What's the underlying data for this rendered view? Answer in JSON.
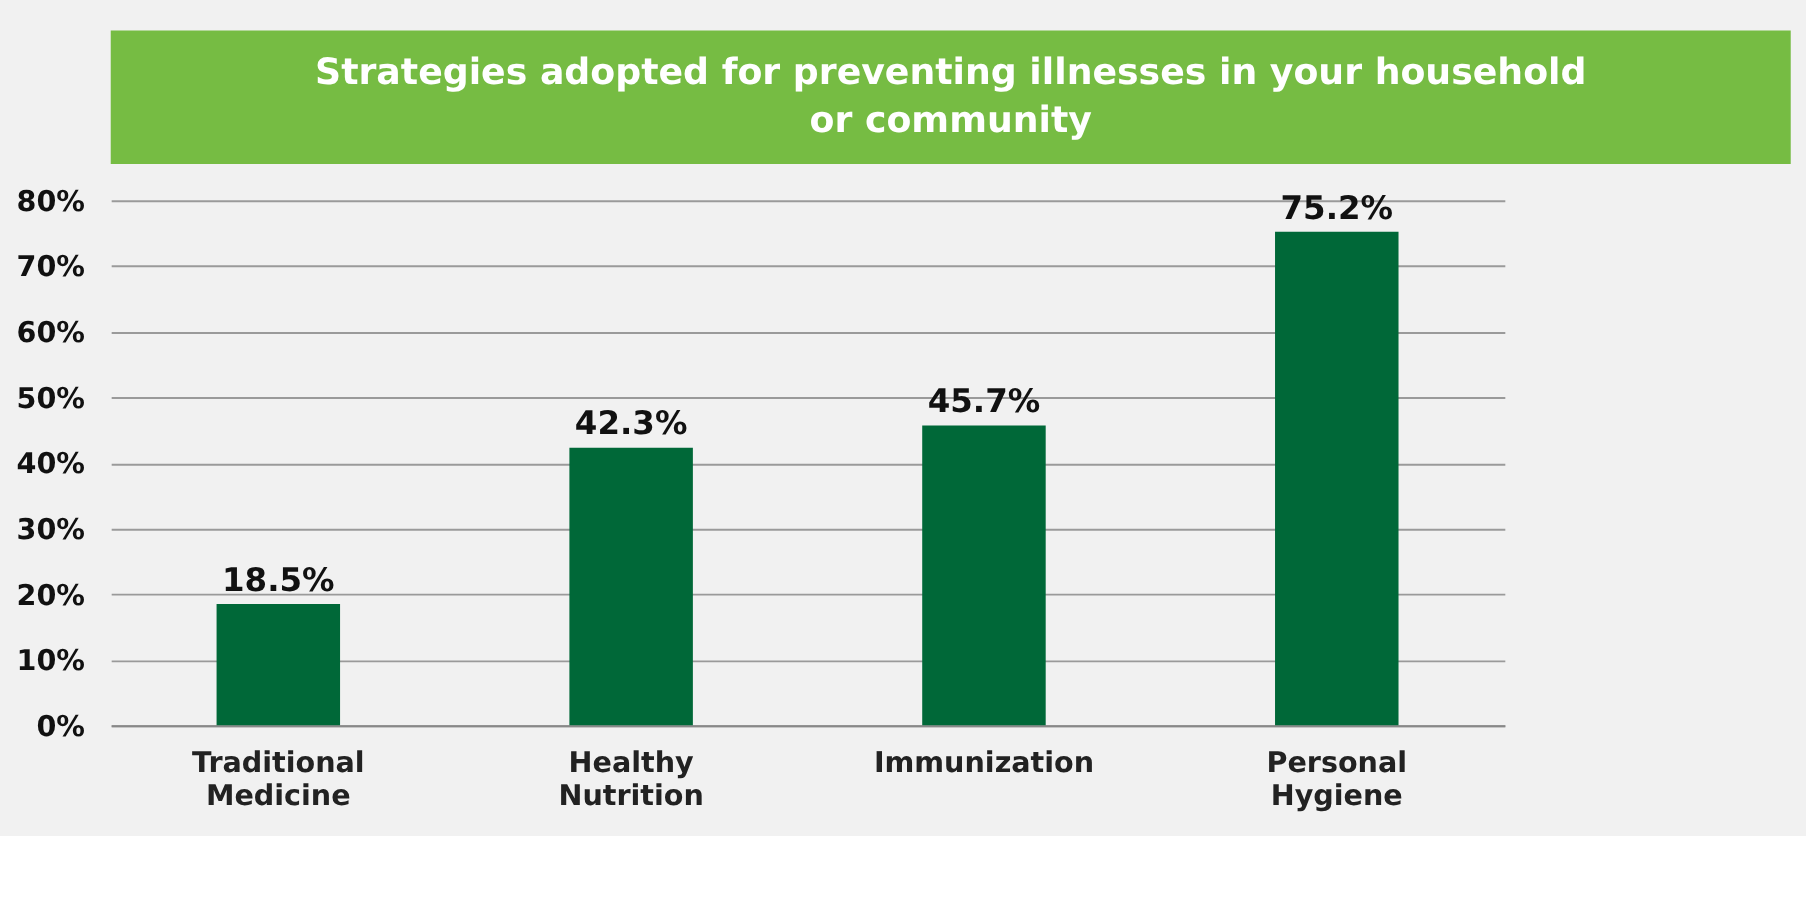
{
  "chart_data": {
    "type": "bar",
    "title": "Strategies adopted for preventing illnesses in your household or community",
    "categories": [
      "Traditional Medicine",
      "Healthy Nutrition",
      "Immunization",
      "Personal Hygiene"
    ],
    "values": [
      18.5,
      42.3,
      45.7,
      75.2
    ],
    "value_labels": [
      "18.5%",
      "42.3%",
      "45.7%",
      "75.2%"
    ],
    "color": "#006838",
    "ylim": [
      0,
      80
    ],
    "yticks": [
      {
        "value": 0,
        "label": "0%"
      },
      {
        "value": 10,
        "label": "10%"
      },
      {
        "value": 20,
        "label": "20%"
      },
      {
        "value": 30,
        "label": "30%"
      },
      {
        "value": 40,
        "label": "40%"
      },
      {
        "value": 50,
        "label": "50%"
      },
      {
        "value": 60,
        "label": "60%"
      },
      {
        "value": 70,
        "label": "70%"
      },
      {
        "value": 80,
        "label": "80%"
      }
    ],
    "grid": "y"
  }
}
